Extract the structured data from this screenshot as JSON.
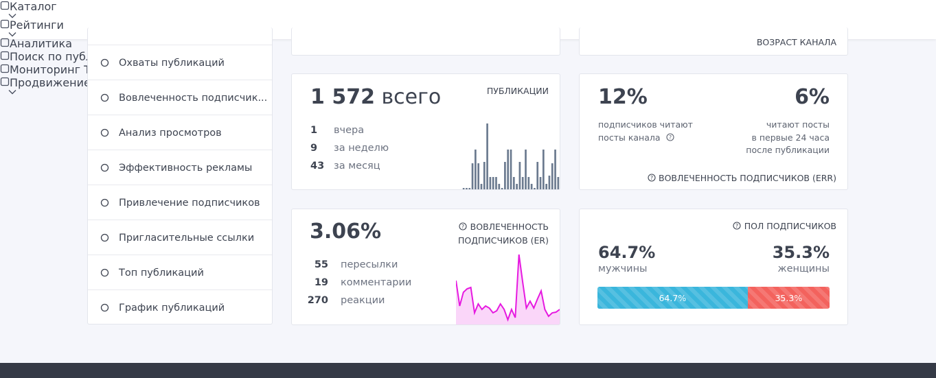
{
  "nav": {
    "items": [
      {
        "label": "Каталог",
        "dropdown": true
      },
      {
        "label": "Рейтинги",
        "dropdown": true
      },
      {
        "label": "Аналитика",
        "dropdown": false
      },
      {
        "label": "Поиск по публикациям",
        "dropdown": false
      },
      {
        "label": "Мониторинг Telegram",
        "dropdown": false
      },
      {
        "label": "Продвижение",
        "dropdown": true
      }
    ]
  },
  "sidebar": {
    "items": [
      "Охваты публикаций",
      "Вовлеченность подписчик...",
      "Анализ просмотров",
      "Эффективность рекламы",
      "Привлечение подписчиков",
      "Пригласительные ссылки",
      "Топ публикаций",
      "График публикаций"
    ]
  },
  "age_card": {
    "title": "ВОЗРАСТ КАНАЛА"
  },
  "publications": {
    "total": "1 572",
    "total_suffix": "всего",
    "title": "ПУБЛИКАЦИИ",
    "stats": [
      {
        "value": "1",
        "label": "вчера"
      },
      {
        "value": "9",
        "label": "за неделю"
      },
      {
        "value": "43",
        "label": "за месяц"
      }
    ],
    "chart": {
      "type": "bar",
      "color": "#6b7a8f",
      "values": [
        2,
        2,
        2,
        38,
        58,
        38,
        8,
        40,
        96,
        18,
        18,
        18,
        8,
        2,
        40,
        58,
        58,
        18,
        8,
        40,
        18,
        58,
        18,
        8,
        2,
        40,
        18,
        58,
        8,
        20,
        38,
        58,
        18
      ]
    }
  },
  "reach": {
    "left_value": "12%",
    "left_text": [
      "подписчиков читают",
      "посты канала"
    ],
    "right_value": "6%",
    "right_text": [
      "читают посты",
      "в первые 24 часа",
      "после публикации"
    ],
    "footer": "ВОВЛЕЧЕННОСТЬ ПОДПИСЧИКОВ (ERR)"
  },
  "er": {
    "value": "3.06%",
    "title": [
      "ВОВЛЕЧЕННОСТЬ",
      "ПОДПИСЧИКОВ (ER)"
    ],
    "stats": [
      {
        "value": "55",
        "label": "пересылки"
      },
      {
        "value": "19",
        "label": "комментарии"
      },
      {
        "value": "270",
        "label": "реакции"
      }
    ],
    "chart": {
      "type": "area",
      "color": "#e619e0",
      "values": [
        62,
        25,
        45,
        50,
        52,
        15,
        28,
        20,
        25,
        22,
        15,
        18,
        28,
        20,
        5,
        20,
        8,
        100,
        60,
        22,
        32,
        22,
        35,
        47,
        20,
        10,
        15,
        16,
        20
      ]
    }
  },
  "gender": {
    "title": "ПОЛ ПОДПИСЧИКОВ",
    "segments": [
      {
        "name": "мужчины",
        "value": 64.7,
        "value_label": "64.7%",
        "color": "#3ab6dc"
      },
      {
        "name": "женщины",
        "value": 35.3,
        "value_label": "35.3%",
        "color": "#f3625d"
      }
    ]
  }
}
